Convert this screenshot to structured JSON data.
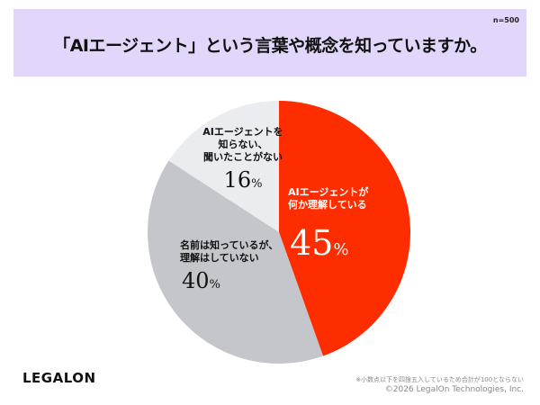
{
  "header": {
    "title": "「AIエージェント」という言葉や概念を知っていますか。",
    "sample": "n=500"
  },
  "chart_data": {
    "type": "pie",
    "title": "「AIエージェント」という言葉や概念を知っていますか。",
    "start": "top",
    "direction": "clockwise",
    "slices": [
      {
        "label_lines": [
          "AIエージェントが",
          "何か理解している"
        ],
        "value": 45,
        "value_label": "45",
        "unit": "%",
        "color": "#fe2d00",
        "text_color": "#ffffff"
      },
      {
        "label_lines": [
          "名前は知っているが、",
          "理解はしていない"
        ],
        "value": 40,
        "value_label": "40",
        "unit": "%",
        "color": "#c5c6cc",
        "text_color": "#111111"
      },
      {
        "label_lines": [
          "AIエージェントを",
          "知らない、",
          "聞いたことがない"
        ],
        "value": 16,
        "value_label": "16",
        "unit": "%",
        "color": "#ebecef",
        "text_color": "#111111"
      }
    ]
  },
  "footer": {
    "logo": "LEGALON",
    "note": "※小数点以下を四捨五入しているため合計が100とならない",
    "copyright": "©2026 LegalOn Technologies, Inc."
  }
}
